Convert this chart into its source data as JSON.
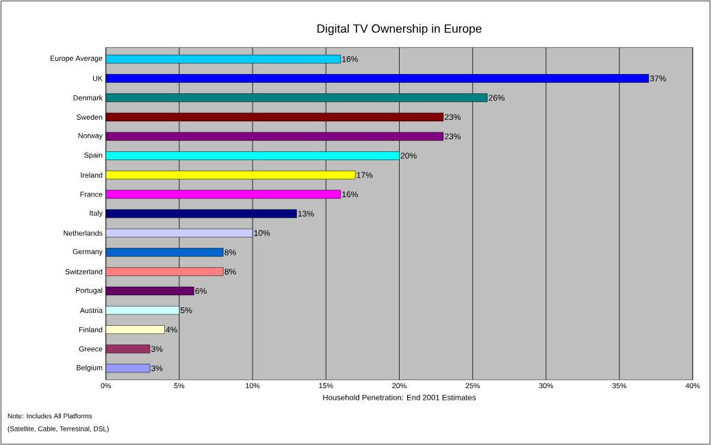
{
  "chart_data": {
    "type": "bar",
    "orientation": "horizontal",
    "title": "Digital TV Ownership in Europe",
    "xlabel": "Household Penetration: End 2001 Estimates",
    "categories": [
      "Europe Average",
      "UK",
      "Denmark",
      "Sweden",
      "Norway",
      "Spain",
      "Ireland",
      "France",
      "Italy",
      "Netherlands",
      "Germany",
      "Switzerland",
      "Portugal",
      "Austria",
      "Finland",
      "Greece",
      "Belgium"
    ],
    "values": [
      16,
      37,
      26,
      23,
      23,
      20,
      17,
      16,
      13,
      10,
      8,
      8,
      6,
      5,
      4,
      3,
      3
    ],
    "value_labels": [
      "16%",
      "37%",
      "26%",
      "23%",
      "23%",
      "20%",
      "17%",
      "16%",
      "13%",
      "10%",
      "8%",
      "8%",
      "6%",
      "5%",
      "4%",
      "3%",
      "3%"
    ],
    "colors": [
      "#00ccff",
      "#0000ff",
      "#008080",
      "#800000",
      "#800080",
      "#00ffff",
      "#ffff00",
      "#ff00ff",
      "#000080",
      "#ccccff",
      "#0066cc",
      "#ff8080",
      "#660066",
      "#ccffff",
      "#ffffcc",
      "#993366",
      "#9999ff"
    ],
    "xlim": [
      0,
      40
    ],
    "xticks": [
      {
        "value": 0,
        "label": "0%"
      },
      {
        "value": 5,
        "label": "5%"
      },
      {
        "value": 10,
        "label": "10%"
      },
      {
        "value": 15,
        "label": "15%"
      },
      {
        "value": 20,
        "label": "20%"
      },
      {
        "value": 25,
        "label": "25%"
      },
      {
        "value": 30,
        "label": "30%"
      },
      {
        "value": 35,
        "label": "35%"
      },
      {
        "value": 40,
        "label": "40%"
      }
    ],
    "grid": "x",
    "annotations": [
      "Note: Includes All Platforms",
      "(Satellite, Cable, Terrestrial, DSL)"
    ]
  }
}
